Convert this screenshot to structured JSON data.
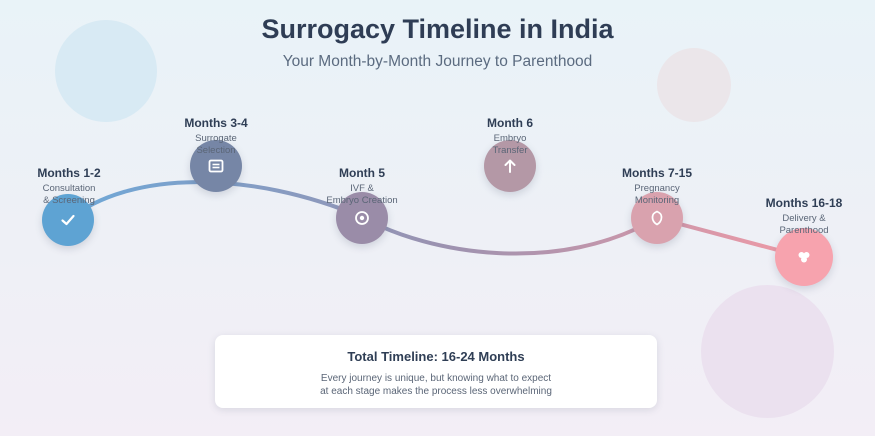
{
  "header": {
    "title": "Surrogacy Timeline in India",
    "subtitle": "Your Month-by-Month Journey to Parenthood"
  },
  "stages": [
    {
      "month": "Months 1-2",
      "desc_line1": "Consultation",
      "desc_line2": "& Screening",
      "icon": "check-icon",
      "color": "#5ea3d3"
    },
    {
      "month": "Months 3-4",
      "desc_line1": "Surrogate",
      "desc_line2": "Selection",
      "icon": "document-icon",
      "color": "#7686a6"
    },
    {
      "month": "Month 5",
      "desc_line1": "IVF &",
      "desc_line2": "Embryo Creation",
      "icon": "target-icon",
      "color": "#9a8ca8"
    },
    {
      "month": "Month 6",
      "desc_line1": "Embryo",
      "desc_line2": "Transfer",
      "icon": "arrow-up-icon",
      "color": "#b498a6"
    },
    {
      "month": "Months 7-15",
      "desc_line1": "Pregnancy",
      "desc_line2": "Monitoring",
      "icon": "shield-icon",
      "color": "#d9a2ae"
    },
    {
      "month": "Months 16-18",
      "desc_line1": "Delivery &",
      "desc_line2": "Parenthood",
      "icon": "family-icon",
      "color": "#f7a3ae"
    }
  ],
  "summary": {
    "title": "Total Timeline: 16-24 Months",
    "line1": "Every journey is unique, but knowing what to expect",
    "line2": "at each stage makes the process less overwhelming"
  }
}
